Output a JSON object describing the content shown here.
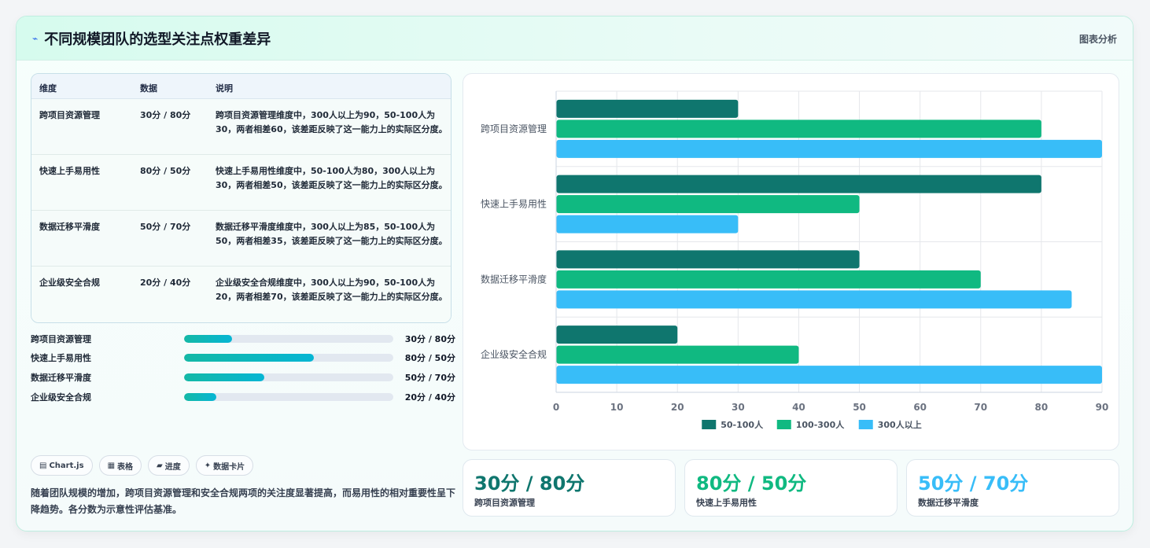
{
  "header": {
    "title": "不同规模团队的选型关注点权重差异",
    "meta": "图表分析",
    "icon": "zap-icon"
  },
  "table": {
    "headers": [
      "维度",
      "数据",
      "说明"
    ],
    "rows": [
      {
        "name": "跨项目资源管理",
        "data": "30分 / 80分",
        "desc": "跨项目资源管理维度中，300人以上为90，50-100人为30，两者相差60，该差距反映了这一能力上的实际区分度。"
      },
      {
        "name": "快速上手易用性",
        "data": "80分 / 50分",
        "desc": "快速上手易用性维度中，50-100人为80，300人以上为30，两者相差50，该差距反映了这一能力上的实际区分度。"
      },
      {
        "name": "数据迁移平滑度",
        "data": "50分 / 70分",
        "desc": "数据迁移平滑度维度中，300人以上为85，50-100人为50，两者相差35，该差距反映了这一能力上的实际区分度。"
      },
      {
        "name": "企业级安全合规",
        "data": "20分 / 40分",
        "desc": "企业级安全合规维度中，300人以上为90，50-100人为20，两者相差70，该差距反映了这一能力上的实际区分度。"
      }
    ]
  },
  "progress": [
    {
      "label": "跨项目资源管理",
      "value": "30分 / 80分",
      "fraction": 0.23
    },
    {
      "label": "快速上手易用性",
      "value": "80分 / 50分",
      "fraction": 0.62
    },
    {
      "label": "数据迁移平滑度",
      "value": "50分 / 70分",
      "fraction": 0.385
    },
    {
      "label": "企业级安全合规",
      "value": "20分 / 40分",
      "fraction": 0.155
    }
  ],
  "pills": [
    {
      "icon": "▤",
      "label": "Chart.js"
    },
    {
      "icon": "▦",
      "label": "表格"
    },
    {
      "icon": "▰",
      "label": "进度"
    },
    {
      "icon": "✦",
      "label": "数据卡片"
    }
  ],
  "note": "随着团队规模的增加，跨项目资源管理和安全合规两项的关注度显著提高，而易用性的相对重要性呈下降趋势。各分数为示意性评估基准。",
  "stats": [
    {
      "big": "30分 / 80分",
      "sub": "跨项目资源管理",
      "color": "#0f766e"
    },
    {
      "big": "80分 / 50分",
      "sub": "快速上手易用性",
      "color": "#10b981"
    },
    {
      "big": "50分 / 70分",
      "sub": "数据迁移平滑度",
      "color": "#38bdf8"
    }
  ],
  "chart_data": {
    "type": "bar",
    "orientation": "horizontal",
    "categories": [
      "跨项目资源管理",
      "快速上手易用性",
      "数据迁移平滑度",
      "企业级安全合规"
    ],
    "series": [
      {
        "name": "50-100人",
        "values": [
          30,
          80,
          50,
          20
        ],
        "color": "#0f766e"
      },
      {
        "name": "100-300人",
        "values": [
          80,
          50,
          70,
          40
        ],
        "color": "#10b981"
      },
      {
        "name": "300人以上",
        "values": [
          90,
          30,
          85,
          90
        ],
        "color": "#38bdf8"
      }
    ],
    "xlim": [
      0,
      90
    ],
    "xticks": [
      "0",
      "10",
      "20",
      "30",
      "40",
      "50",
      "60",
      "70",
      "80",
      "90"
    ],
    "grid": true,
    "legend": "bottom"
  }
}
